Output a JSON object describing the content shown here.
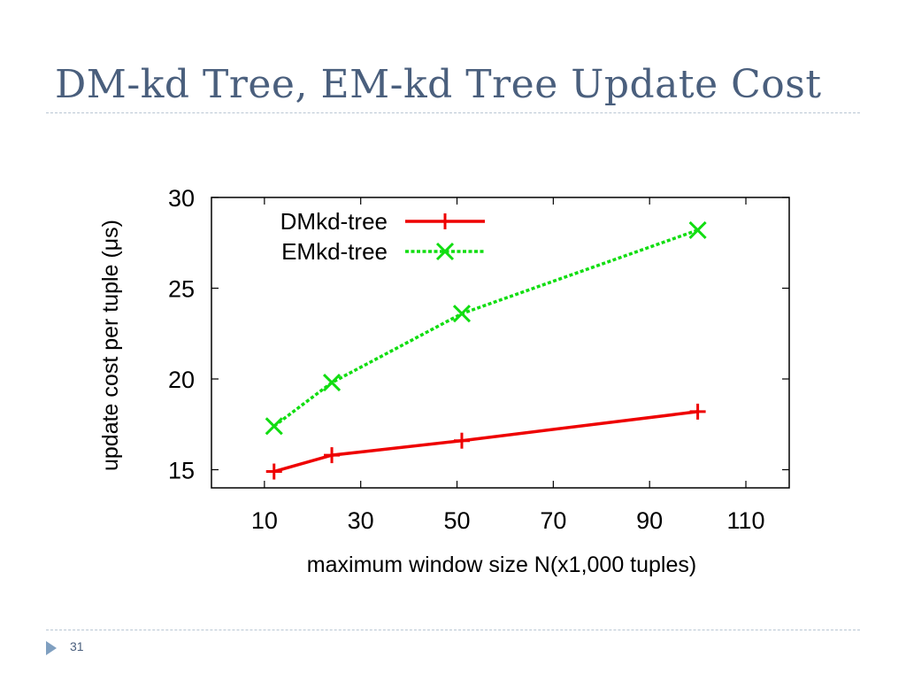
{
  "slide": {
    "title": "DM-kd Tree, EM-kd Tree Update Cost",
    "page_number": "31"
  },
  "colors": {
    "title": "#4a5f7d",
    "rule": "#b9c6d3",
    "dm_series": "#ee0000",
    "em_series": "#11dd11"
  },
  "chart_data": {
    "type": "line",
    "xlabel": "maximum window size N(x1,000 tuples)",
    "ylabel": "update cost per tuple (μs)",
    "xlim": [
      -1,
      119
    ],
    "ylim": [
      14,
      30
    ],
    "xticks": [
      10,
      30,
      50,
      70,
      90,
      110
    ],
    "yticks": [
      15,
      20,
      25,
      30
    ],
    "grid": false,
    "legend_position": "top-left",
    "series": [
      {
        "name": "DMkd-tree",
        "marker": "plus",
        "line": "solid",
        "color": "#ee0000",
        "x": [
          12,
          24,
          51,
          100
        ],
        "y": [
          14.9,
          15.8,
          16.6,
          18.2
        ]
      },
      {
        "name": "EMkd-tree",
        "marker": "cross",
        "line": "dotted",
        "color": "#11dd11",
        "x": [
          12,
          24,
          51,
          100
        ],
        "y": [
          17.4,
          19.8,
          23.6,
          28.2
        ]
      }
    ]
  }
}
